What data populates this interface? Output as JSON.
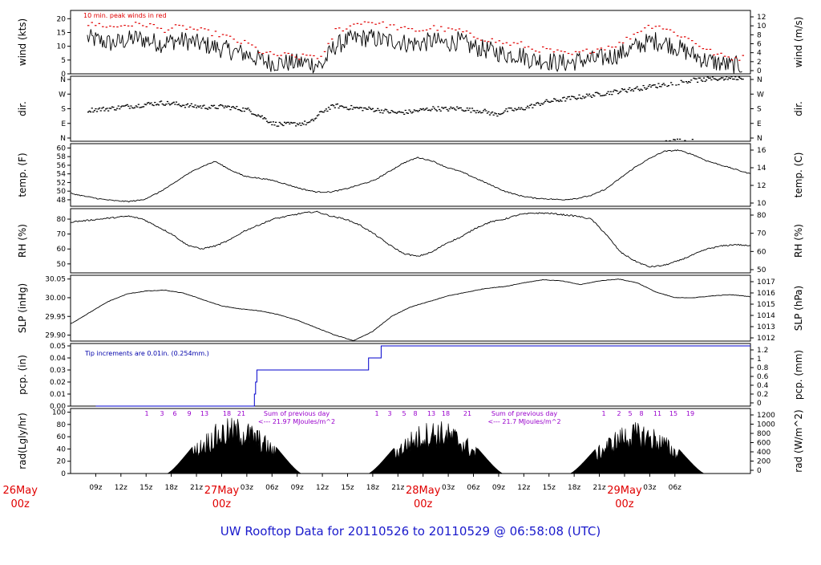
{
  "chart_data": [
    {
      "type": "line",
      "ylabel": "wind (kts)",
      "ylabel_right": "wind (m/s)",
      "note": "10 min. peak winds in red",
      "yticks": [
        0,
        5,
        10,
        15,
        20
      ],
      "yticks_right": [
        0,
        2,
        4,
        6,
        8,
        10,
        12
      ],
      "ylim": [
        0,
        23
      ],
      "series": [
        {
          "values": [
            13,
            12,
            11,
            12,
            13,
            12,
            11,
            12,
            12,
            11,
            10,
            9,
            8,
            7,
            5,
            4,
            4,
            4,
            4,
            3,
            10,
            12,
            13,
            13,
            12,
            12,
            11,
            11,
            12,
            11,
            12,
            10,
            9,
            8,
            7,
            7,
            5,
            5,
            4,
            4,
            5,
            5,
            6,
            7,
            9,
            11,
            12,
            11,
            9,
            7,
            5,
            4,
            3,
            3
          ]
        },
        {
          "color": "#e00000",
          "values": [
            18,
            18,
            17,
            18,
            18,
            18,
            16,
            17,
            17,
            16,
            15,
            14,
            12,
            11,
            8,
            7,
            7,
            6,
            7,
            6,
            16,
            17,
            19,
            19,
            18,
            17,
            16,
            16,
            17,
            16,
            16,
            14,
            13,
            12,
            11,
            11,
            9,
            9,
            8,
            7,
            8,
            9,
            10,
            11,
            14,
            17,
            18,
            16,
            14,
            12,
            9,
            7,
            6,
            6
          ]
        }
      ]
    },
    {
      "type": "scatter",
      "ylabel": "dir.",
      "ylabel_right": "dir.",
      "yticks": [
        "N",
        "E",
        "S",
        "W",
        "N"
      ],
      "yticks_right": [
        "N",
        "E",
        "S",
        "W",
        "N"
      ],
      "ylim": [
        0,
        360
      ],
      "values": [
        175,
        180,
        185,
        195,
        200,
        210,
        215,
        210,
        200,
        195,
        190,
        195,
        185,
        175,
        140,
        100,
        95,
        100,
        105,
        170,
        200,
        190,
        185,
        180,
        170,
        160,
        165,
        175,
        185,
        180,
        185,
        175,
        170,
        150,
        175,
        180,
        200,
        220,
        230,
        240,
        250,
        260,
        270,
        280,
        290,
        300,
        310,
        320,
        330,
        340,
        345,
        350,
        355,
        355
      ]
    },
    {
      "type": "line",
      "ylabel": "temp. (F)",
      "ylabel_right": "temp. (C)",
      "yticks": [
        48,
        50,
        52,
        54,
        56,
        58,
        60
      ],
      "yticks_right": [
        10,
        12,
        14,
        16
      ],
      "ylim": [
        46.5,
        61
      ],
      "values": [
        49.5,
        48.8,
        48.2,
        47.8,
        47.6,
        48.0,
        49.5,
        51.5,
        53.8,
        55.6,
        56.9,
        55.0,
        53.5,
        53.0,
        52.5,
        51.5,
        50.5,
        49.8,
        49.8,
        50.5,
        51.5,
        52.5,
        54.5,
        56.5,
        57.8,
        57.0,
        55.5,
        54.5,
        53.0,
        51.5,
        50.0,
        49.0,
        48.4,
        48.2,
        48.0,
        48.3,
        49.0,
        50.5,
        53.0,
        55.5,
        57.5,
        59.2,
        59.5,
        58.5,
        57.0,
        56.0,
        55.0,
        54.0
      ]
    },
    {
      "type": "line",
      "ylabel": "RH (%)",
      "ylabel_right": "RH (%)",
      "yticks": [
        50,
        60,
        70,
        80
      ],
      "yticks_right": [
        50,
        60,
        70,
        80
      ],
      "ylim": [
        44,
        87
      ],
      "values": [
        78,
        79,
        80,
        81,
        82,
        80,
        75,
        70,
        63,
        60,
        62,
        66,
        72,
        76,
        80,
        82,
        84,
        85,
        82,
        80,
        76,
        70,
        63,
        57,
        55,
        58,
        64,
        68,
        74,
        78,
        80,
        83,
        84,
        84,
        83,
        82,
        80,
        70,
        58,
        52,
        48,
        49,
        52,
        56,
        60,
        62,
        63,
        62
      ]
    },
    {
      "type": "line",
      "ylabel": "SLP (inHg)",
      "ylabel_right": "SLP (hPa)",
      "yticks": [
        29.9,
        29.95,
        30.0,
        30.05
      ],
      "ytick_labels": [
        "29.90",
        "29.95",
        "30.00",
        "30.05"
      ],
      "yticks_right": [
        1012,
        1013,
        1014,
        1015,
        1016,
        1017
      ],
      "ylim": [
        29.884,
        30.06
      ],
      "values": [
        29.93,
        29.96,
        29.99,
        30.01,
        30.018,
        30.02,
        30.012,
        29.995,
        29.978,
        29.97,
        29.965,
        29.955,
        29.94,
        29.92,
        29.9,
        29.885,
        29.91,
        29.95,
        29.975,
        29.99,
        30.005,
        30.015,
        30.025,
        30.03,
        30.04,
        30.048,
        30.045,
        30.035,
        30.045,
        30.05,
        30.04,
        30.015,
        30.0,
        30.0,
        30.005,
        30.008,
        30.003
      ]
    },
    {
      "type": "line",
      "ylabel": "pcp. (in)",
      "ylabel_right": "pcp. (mm)",
      "note": "Tip increments are 0.01in. (0.254mm.)",
      "yticks": [
        0,
        0.01,
        0.02,
        0.03,
        0.04,
        0.05
      ],
      "ytick_labels": [
        "0.00",
        "0.01",
        "0.02",
        "0.03",
        "0.04",
        "0.05"
      ],
      "yticks_right": [
        0,
        0.2,
        0.4,
        0.6,
        0.8,
        1,
        1.2
      ],
      "ylim": [
        0,
        0.052
      ],
      "steps": [
        [
          0,
          0
        ],
        [
          18.9,
          0
        ],
        [
          18.9,
          0.01
        ],
        [
          19.05,
          0.01
        ],
        [
          19.05,
          0.02
        ],
        [
          19.2,
          0.02
        ],
        [
          19.2,
          0.03
        ],
        [
          32.5,
          0.03
        ],
        [
          32.5,
          0.04
        ],
        [
          34.0,
          0.04
        ],
        [
          34.0,
          0.05
        ],
        [
          78,
          0.05
        ]
      ]
    },
    {
      "type": "area",
      "ylabel": "rad(Lgly/hr)",
      "ylabel_right": "rad (W/m^2)",
      "yticks": [
        0,
        20,
        40,
        60,
        80,
        100
      ],
      "yticks_right": [
        0,
        200,
        400,
        600,
        800,
        1000,
        1200
      ],
      "ylim": [
        0,
        106
      ],
      "hour_marks": [
        "1",
        "3",
        "6",
        "9",
        "13",
        "18",
        "21",
        "1",
        "3",
        "5",
        "8",
        "13",
        "18",
        "21",
        "1",
        "2",
        "5",
        "8",
        "11",
        "15",
        "19"
      ],
      "summaries": [
        "Sum of previous day",
        "<--- 21.97 MJoules/m^2",
        "Sum of previous day",
        "<--- 21.7 MJoules/m^2"
      ],
      "days": [
        {
          "center": 16.5,
          "peak": 92
        },
        {
          "center": 40.5,
          "peak": 88
        },
        {
          "center": 64.5,
          "peak": 84
        }
      ]
    }
  ],
  "x_axis": {
    "range_hours": [
      -3,
      78
    ],
    "ticks": [
      "09z",
      "12z",
      "15z",
      "18z",
      "21z",
      "00z",
      "03z",
      "06z",
      "09z",
      "12z",
      "15z",
      "18z",
      "21z",
      "00z",
      "03z",
      "06z",
      "09z",
      "12z",
      "15z",
      "18z",
      "21z",
      "00z",
      "03z",
      "06z"
    ],
    "day_labels": [
      [
        "26May",
        "00z"
      ],
      [
        "27May",
        "00z"
      ],
      [
        "28May",
        "00z"
      ],
      [
        "29May",
        "00z"
      ]
    ]
  },
  "footer": {
    "title": "UW Rooftop Data for 20110526  to  20110529 @ 06:58:08  (UTC)"
  }
}
